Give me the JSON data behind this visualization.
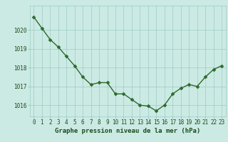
{
  "x": [
    0,
    1,
    2,
    3,
    4,
    5,
    6,
    7,
    8,
    9,
    10,
    11,
    12,
    13,
    14,
    15,
    16,
    17,
    18,
    19,
    20,
    21,
    22,
    23
  ],
  "y": [
    1020.7,
    1020.1,
    1019.5,
    1019.1,
    1018.6,
    1018.1,
    1017.5,
    1017.1,
    1017.2,
    1017.2,
    1016.6,
    1016.6,
    1016.3,
    1016.0,
    1015.95,
    1015.7,
    1016.0,
    1016.6,
    1016.9,
    1017.1,
    1017.0,
    1017.5,
    1017.9,
    1018.1
  ],
  "line_color": "#2d6a2d",
  "marker_color": "#2d6a2d",
  "bg_color": "#cceae4",
  "grid_color": "#99ccc4",
  "xlabel": "Graphe pression niveau de la mer (hPa)",
  "xlabel_color": "#1a4a1a",
  "tick_label_color": "#1a4a1a",
  "ylim": [
    1015.4,
    1021.3
  ],
  "yticks": [
    1016,
    1017,
    1018,
    1019,
    1020
  ],
  "xticks": [
    0,
    1,
    2,
    3,
    4,
    5,
    6,
    7,
    8,
    9,
    10,
    11,
    12,
    13,
    14,
    15,
    16,
    17,
    18,
    19,
    20,
    21,
    22,
    23
  ],
  "tick_fontsize": 5.5,
  "xlabel_fontsize": 6.5,
  "line_width": 1.0,
  "marker_size": 2.5
}
